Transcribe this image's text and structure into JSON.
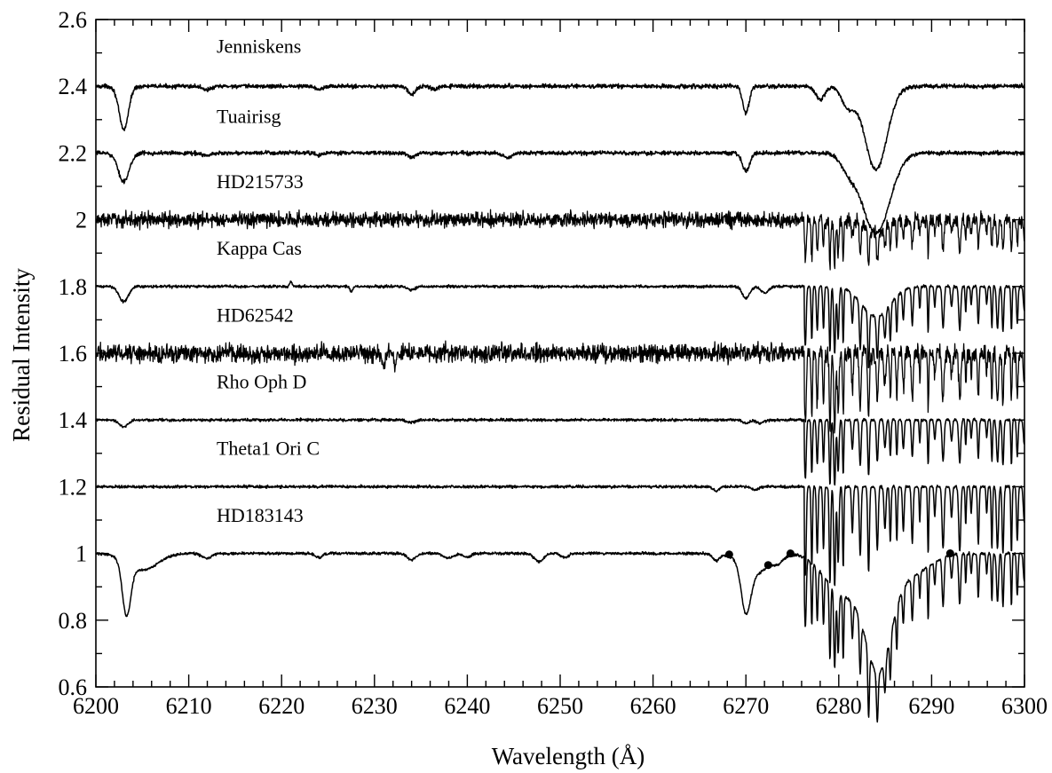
{
  "chart_data": {
    "type": "line",
    "title": "",
    "xlabel": "Wavelength (Å)",
    "ylabel": "Residual Intensity",
    "xlim": [
      6200,
      6300
    ],
    "ylim": [
      0.6,
      2.6
    ],
    "xticks": [
      6200,
      6210,
      6220,
      6230,
      6240,
      6250,
      6260,
      6270,
      6280,
      6290,
      6300
    ],
    "yticks": [
      0.6,
      0.8,
      1.0,
      1.2,
      1.4,
      1.6,
      1.8,
      2.0,
      2.2,
      2.4,
      2.6
    ],
    "xtick_labels": [
      "6200",
      "6210",
      "6220",
      "6230",
      "6240",
      "6250",
      "6260",
      "6270",
      "6280",
      "6290",
      "6300"
    ],
    "ytick_labels": [
      "0.6",
      "0.8",
      "1",
      "1.2",
      "1.4",
      "1.6",
      "1.8",
      "2",
      "2.2",
      "2.4",
      "2.6"
    ],
    "grid": false,
    "legend": "none",
    "series": [
      {
        "name": "Jenniskens",
        "label_at": [
          6213,
          2.5
        ],
        "baseline": 2.4,
        "noise": 0.003,
        "telluric": 0,
        "features": [
          [
            6203,
            0.13,
            0.5
          ],
          [
            6212,
            0.01,
            0.5
          ],
          [
            6224,
            0.01,
            0.3
          ],
          [
            6234,
            0.025,
            0.4
          ],
          [
            6236.5,
            0.01,
            0.4
          ],
          [
            6270,
            0.08,
            0.35
          ],
          [
            6278,
            0.04,
            0.5
          ],
          [
            6281,
            0.06,
            0.7
          ],
          [
            6284,
            0.25,
            1.2
          ]
        ],
        "points": [
          [
            6200,
            2.395
          ],
          [
            6203,
            2.27
          ],
          [
            6206,
            2.385
          ],
          [
            6210,
            2.395
          ],
          [
            6234,
            2.375
          ],
          [
            6240,
            2.4
          ],
          [
            6268,
            2.4
          ],
          [
            6270,
            2.32
          ],
          [
            6272,
            2.395
          ],
          [
            6277,
            2.37
          ],
          [
            6281,
            2.33
          ],
          [
            6284,
            2.15
          ],
          [
            6287,
            2.39
          ],
          [
            6300,
            2.4
          ]
        ]
      },
      {
        "name": "Tuairisg",
        "label_at": [
          6213,
          2.29
        ],
        "baseline": 2.2,
        "noise": 0.003,
        "telluric": 0,
        "features": [
          [
            6203,
            0.085,
            0.6
          ],
          [
            6212,
            0.008,
            0.5
          ],
          [
            6224,
            0.008,
            0.3
          ],
          [
            6234,
            0.012,
            0.4
          ],
          [
            6244.3,
            0.015,
            0.5
          ],
          [
            6270,
            0.055,
            0.4
          ],
          [
            6281,
            0.04,
            0.8
          ],
          [
            6284,
            0.24,
            1.5
          ]
        ],
        "points": [
          [
            6200,
            2.195
          ],
          [
            6203,
            2.12
          ],
          [
            6206,
            2.185
          ],
          [
            6244,
            2.185
          ],
          [
            6270,
            2.15
          ],
          [
            6284,
            2.01
          ],
          [
            6288,
            2.19
          ],
          [
            6300,
            2.2
          ]
        ]
      },
      {
        "name": "HD215733",
        "label_at": [
          6213,
          2.095
        ],
        "baseline": 2.0,
        "noise": 0.011,
        "telluric": 0.2,
        "features": [
          [
            6284,
            0.04,
            1.0
          ]
        ],
        "points": [
          [
            6200,
            2.0
          ],
          [
            6276,
            2.0
          ],
          [
            6278,
            1.86
          ],
          [
            6284,
            1.95
          ],
          [
            6300,
            2.0
          ]
        ]
      },
      {
        "name": "Kappa Cas",
        "label_at": [
          6213,
          1.895
        ],
        "baseline": 1.8,
        "noise": 0.002,
        "telluric": 0.3,
        "features": [
          [
            6203,
            0.045,
            0.5
          ],
          [
            6221,
            -0.015,
            0.15
          ],
          [
            6227.5,
            0.015,
            0.15
          ],
          [
            6234,
            0.01,
            0.4
          ],
          [
            6270,
            0.035,
            0.4
          ],
          [
            6272,
            0.02,
            0.4
          ],
          [
            6284,
            0.09,
            1.5
          ]
        ],
        "points": [
          [
            6200,
            1.8
          ],
          [
            6203,
            1.755
          ],
          [
            6270,
            1.765
          ],
          [
            6276,
            1.8
          ],
          [
            6278,
            1.55
          ],
          [
            6284,
            1.63
          ],
          [
            6290,
            1.79
          ],
          [
            6300,
            1.8
          ]
        ]
      },
      {
        "name": "HD62542",
        "label_at": [
          6213,
          1.695
        ],
        "baseline": 1.6,
        "noise": 0.013,
        "telluric": 0.35,
        "features": [
          [
            6231,
            0.035,
            0.15
          ],
          [
            6232.2,
            0.045,
            0.12
          ]
        ],
        "points": [
          [
            6200,
            1.6
          ],
          [
            6232,
            1.55
          ],
          [
            6275.5,
            1.6
          ],
          [
            6277,
            1.36
          ],
          [
            6300,
            1.6
          ]
        ]
      },
      {
        "name": "Rho Oph D",
        "label_at": [
          6213,
          1.495
        ],
        "baseline": 1.4,
        "noise": 0.002,
        "telluric": 0.3,
        "features": [
          [
            6203,
            0.02,
            0.5
          ],
          [
            6234,
            0.008,
            0.4
          ],
          [
            6270,
            0.01,
            0.4
          ],
          [
            6271.5,
            0.01,
            0.4
          ]
        ],
        "points": [
          [
            6200,
            1.4
          ],
          [
            6203,
            1.38
          ],
          [
            6275.5,
            1.4
          ],
          [
            6278,
            1.17
          ],
          [
            6300,
            1.4
          ]
        ]
      },
      {
        "name": "Theta1 Ori C",
        "label_at": [
          6213,
          1.295
        ],
        "baseline": 1.2,
        "noise": 0.002,
        "telluric": 0.45,
        "features": [
          [
            6266.8,
            0.012,
            0.3
          ],
          [
            6271,
            0.01,
            0.3
          ]
        ],
        "points": [
          [
            6200,
            1.2
          ],
          [
            6274.5,
            1.2
          ],
          [
            6277,
            0.95
          ],
          [
            6300,
            1.2
          ]
        ]
      },
      {
        "name": "HD183143",
        "label_at": [
          6213,
          1.095
        ],
        "baseline": 1.0,
        "noise": 0.002,
        "telluric": 0.35,
        "features": [
          [
            6203.3,
            0.16,
            0.45
          ],
          [
            6205,
            0.05,
            1.6
          ],
          [
            6212,
            0.015,
            0.5
          ],
          [
            6224,
            0.012,
            0.4
          ],
          [
            6234,
            0.02,
            0.45
          ],
          [
            6238,
            0.015,
            0.5
          ],
          [
            6240,
            0.012,
            0.4
          ],
          [
            6247.7,
            0.025,
            0.5
          ],
          [
            6250.5,
            0.012,
            0.4
          ],
          [
            6266.8,
            0.02,
            0.4
          ],
          [
            6270,
            0.135,
            0.5
          ],
          [
            6271,
            0.06,
            1.4
          ],
          [
            6273.5,
            0.02,
            0.6
          ],
          [
            6284.3,
            0.33,
            1.4
          ],
          [
            6280.5,
            0.12,
            2.0
          ],
          [
            6288,
            0.06,
            1.8
          ]
        ],
        "points": [
          [
            6200,
            1.0
          ],
          [
            6203.3,
            0.83
          ],
          [
            6207,
            0.975
          ],
          [
            6270,
            0.86
          ],
          [
            6275,
            0.99
          ],
          [
            6277,
            0.8
          ],
          [
            6280,
            0.74
          ],
          [
            6284.4,
            0.645
          ],
          [
            6290,
            0.93
          ],
          [
            6300,
            1.0
          ]
        ]
      }
    ],
    "markers": {
      "series": "HD183143",
      "x": [
        6268.2,
        6272.4,
        6274.8,
        6292
      ]
    },
    "telluric_region": [
      6276.3,
      6300
    ]
  }
}
